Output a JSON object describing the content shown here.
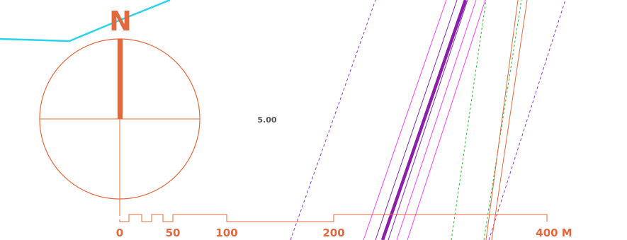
{
  "map": {
    "north_arrow": {
      "letter": "N",
      "icon": "compass-rose-icon"
    },
    "spot_label": "5.00",
    "scale_bar": {
      "labels": [
        "0",
        "50",
        "100",
        "200",
        "400 M"
      ]
    },
    "colors": {
      "accent": "#e0693f",
      "boundary": "#2cd3e8",
      "primary_route": "#8b1fa8",
      "magenta_lines": "#f044f0",
      "purple_lines": "#7a2fa8",
      "green_dashed": "#27b535",
      "purple_dashed": "#8e3ab8",
      "label_gray": "#555555"
    }
  }
}
